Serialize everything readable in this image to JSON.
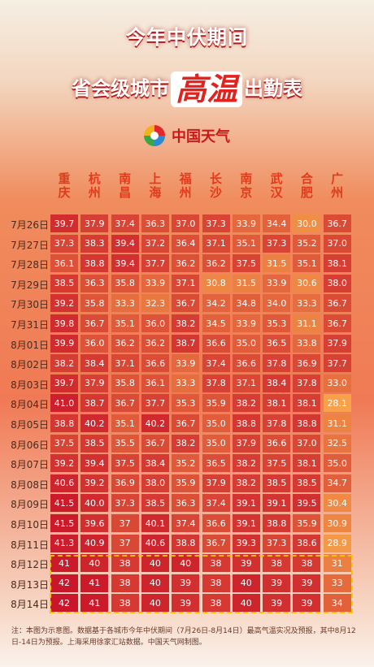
{
  "title_line1": "今年中伏期间",
  "title_line2_pre": "省会级城市",
  "title_line2_hi": "高温",
  "title_line2_post": "出勤表",
  "logo_text": "中国天气",
  "note": "注：本图为示意图。数据基于各城市今年中伏期间（7月26日-8月14日）最高气温实况及预报，其中8月12日-14日为预报。上海采用徐家汇站数据。中国天气网制图。",
  "colors": {
    "low": "#f7a24a",
    "high": "#c9162a",
    "forecast": "#e3253a",
    "border": "#f7c200"
  },
  "chart_data": {
    "type": "heatmap",
    "cities": [
      "重庆",
      "杭州",
      "南昌",
      "上海",
      "福州",
      "长沙",
      "南京",
      "武汉",
      "合肥",
      "广州"
    ],
    "dates": [
      "7月26日",
      "7月27日",
      "7月28日",
      "7月29日",
      "7月30日",
      "7月31日",
      "8月01日",
      "8月02日",
      "8月03日",
      "8月04日",
      "8月05日",
      "8月06日",
      "8月07日",
      "8月08日",
      "8月09日",
      "8月10日",
      "8月11日",
      "8月12日",
      "8月13日",
      "8月14日"
    ],
    "forecast_dates": [
      "8月12日",
      "8月13日",
      "8月14日"
    ],
    "values": [
      [
        "39.7",
        "37.9",
        "37.4",
        "36.3",
        "37.0",
        "37.3",
        "33.9",
        "34.4",
        "30.0",
        "36.7"
      ],
      [
        "37.3",
        "38.3",
        "39.4",
        "37.2",
        "36.4",
        "37.1",
        "35.1",
        "37.3",
        "35.2",
        "37.0"
      ],
      [
        "36.1",
        "38.8",
        "39.4",
        "37.7",
        "36.2",
        "36.2",
        "37.5",
        "31.5",
        "35.1",
        "38.1"
      ],
      [
        "38.5",
        "36.3",
        "35.8",
        "33.9",
        "37.1",
        "30.8",
        "31.5",
        "33.9",
        "30.6",
        "38.0"
      ],
      [
        "39.2",
        "35.8",
        "33.3",
        "32.3",
        "36.7",
        "34.2",
        "34.8",
        "34.0",
        "33.3",
        "36.7"
      ],
      [
        "39.8",
        "36.7",
        "35.1",
        "36.0",
        "38.2",
        "34.5",
        "33.9",
        "35.3",
        "31.1",
        "36.7"
      ],
      [
        "39.9",
        "36.0",
        "36.2",
        "36.2",
        "38.7",
        "36.6",
        "35.0",
        "36.5",
        "33.8",
        "37.9"
      ],
      [
        "38.2",
        "38.4",
        "37.1",
        "36.6",
        "33.9",
        "37.4",
        "36.6",
        "37.8",
        "36.9",
        "37.7"
      ],
      [
        "39.7",
        "37.9",
        "35.8",
        "36.1",
        "33.3",
        "37.8",
        "37.1",
        "38.4",
        "37.8",
        "33.0"
      ],
      [
        "41.0",
        "38.7",
        "36.7",
        "37.7",
        "35.3",
        "35.9",
        "38.2",
        "38.1",
        "38.1",
        "28.1"
      ],
      [
        "38.8",
        "40.2",
        "35.1",
        "40.2",
        "36.7",
        "35.0",
        "38.8",
        "37.8",
        "38.8",
        "31.1"
      ],
      [
        "37.5",
        "38.5",
        "35.5",
        "36.7",
        "38.2",
        "35.0",
        "37.9",
        "36.6",
        "37.0",
        "32.5"
      ],
      [
        "39.2",
        "39.4",
        "37.5",
        "38.4",
        "35.2",
        "36.5",
        "38.2",
        "37.5",
        "38.1",
        "35.0"
      ],
      [
        "40.6",
        "39.2",
        "36.9",
        "38.0",
        "35.9",
        "37.9",
        "38.2",
        "38.5",
        "38.5",
        "34.7"
      ],
      [
        "41.5",
        "40.0",
        "37.3",
        "38.5",
        "36.3",
        "37.4",
        "39.1",
        "39.1",
        "39.5",
        "30.4"
      ],
      [
        "41.5",
        "39.6",
        "37",
        "40.1",
        "37.4",
        "36.6",
        "39.1",
        "38.8",
        "35.9",
        "30.9"
      ],
      [
        "41.3",
        "40.9",
        "37",
        "40.6",
        "38.8",
        "36.7",
        "39.3",
        "37.3",
        "38.6",
        "28.9"
      ],
      [
        "41",
        "40",
        "38",
        "40",
        "40",
        "38",
        "39",
        "38",
        "38",
        "31"
      ],
      [
        "42",
        "41",
        "38",
        "40",
        "39",
        "38",
        "40",
        "39",
        "39",
        "33"
      ],
      [
        "42",
        "41",
        "38",
        "40",
        "39",
        "38",
        "40",
        "39",
        "39",
        "34"
      ]
    ]
  }
}
